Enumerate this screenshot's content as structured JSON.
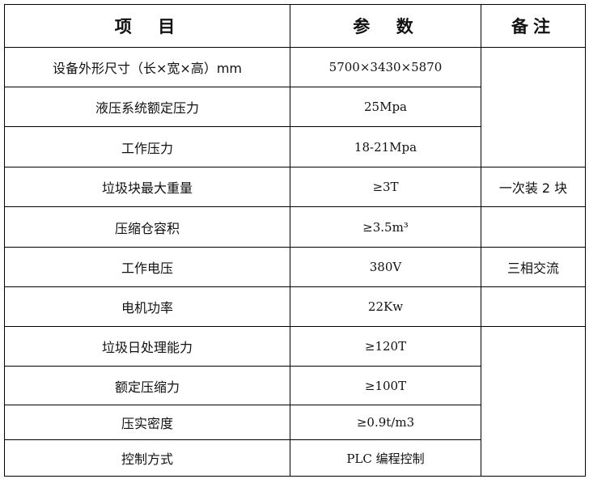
{
  "header": {
    "item": "项  目",
    "param": "参  数",
    "remark": "备注"
  },
  "rows": [
    {
      "item": "设备外形尺寸（长×宽×高）mm",
      "param": "5700×3430×5870"
    },
    {
      "item": "液压系统额定压力",
      "param": "25Mpa"
    },
    {
      "item": "工作压力",
      "param": "18-21Mpa"
    },
    {
      "item": "垃圾块最大重量",
      "param": "≥3T",
      "remark": "一次装 2 块"
    },
    {
      "item": "压缩仓容积",
      "param": "≥3.5m³"
    },
    {
      "item": "工作电压",
      "param": "380V",
      "remark": "三相交流"
    },
    {
      "item": "电机功率",
      "param": "22Kw"
    },
    {
      "item": "垃圾日处理能力",
      "param": "≥120T"
    },
    {
      "item": "额定压缩力",
      "param": "≥100T"
    },
    {
      "item": "压实密度",
      "param": "≥0.9t/m3"
    },
    {
      "item": "控制方式",
      "param": "PLC 编程控制"
    }
  ]
}
